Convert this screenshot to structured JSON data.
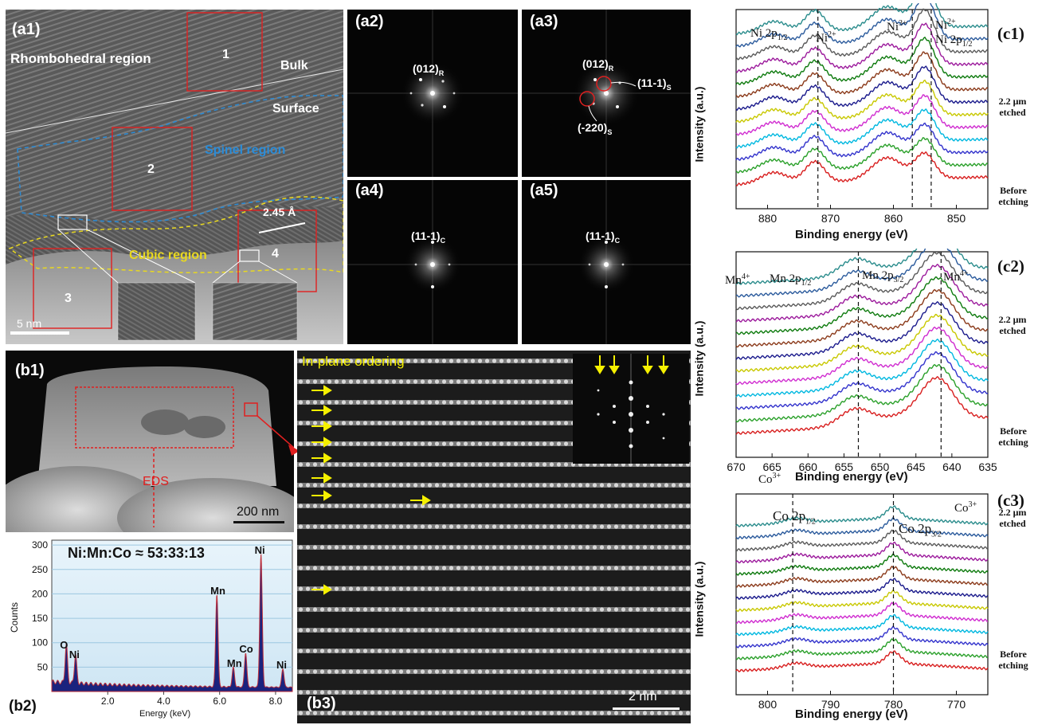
{
  "a1": {
    "label": "(a1)",
    "rhombohedral": "Rhombohedral region",
    "bulk": "Bulk",
    "surface": "Surface",
    "spinel": "Spinel region",
    "cubic": "Cubic region",
    "box1": "1",
    "box2": "2",
    "box3": "3",
    "box4": "4",
    "dspacing": "2.45 Å",
    "scalebar": "5 nm"
  },
  "a2": {
    "label": "(a2)",
    "spot": "(012)",
    "sub": "R"
  },
  "a3": {
    "label": "(a3)",
    "spot1": "(012)",
    "sub1": "R",
    "spot2": "(11-1)",
    "sub2": "S",
    "spot3": "(-220)",
    "sub3": "S"
  },
  "a4": {
    "label": "(a4)",
    "spot": "(11-1)",
    "sub": "C"
  },
  "a5": {
    "label": "(a5)",
    "spot": "(11-1)",
    "sub": "C"
  },
  "b1": {
    "label": "(b1)",
    "eds": "EDS",
    "scalebar": "200 nm"
  },
  "b2": {
    "label": "(b2)",
    "ratio": "Ni:Mn:Co ≈ 53:33:13",
    "ylabel": "Counts",
    "xlabel": "Energy (keV)",
    "yticks": [
      "300",
      "250",
      "200",
      "150",
      "100",
      "50"
    ],
    "xticks": [
      "2.0",
      "4.0",
      "6.0",
      "8.0"
    ],
    "peaks": [
      "O",
      "Ni",
      "Mn",
      "Mn",
      "Co",
      "Ni",
      "Ni"
    ]
  },
  "b3": {
    "label": "(b3)",
    "title": "In-plane ordering",
    "scalebar": "2 nm"
  },
  "c1": {
    "label": "(c1)",
    "ylabel": "Intensity (a.u.)",
    "xlabel": "Binding energy (eV)",
    "xticks": [
      "880",
      "870",
      "860",
      "850"
    ],
    "ann_ni2p12_left": "Ni 2p",
    "ann_ni2p12_left_sub": "1/2",
    "ann_ni2_a": "Ni",
    "ann_ni2_a_sup": "2+",
    "ann_ni3": "Ni",
    "ann_ni3_sup": "3+",
    "ann_ni2_b": "Ni",
    "ann_ni2_b_sup": "2+",
    "ann_ni2p12_right": "Ni 2p",
    "ann_ni2p12_right_sub": "1/2",
    "top_note": "2.2 μm etched",
    "bottom_note": "Before etching"
  },
  "c2": {
    "label": "(c2)",
    "ylabel": "Intensity (a.u.)",
    "xlabel": "Binding energy (eV)",
    "xticks": [
      "670",
      "665",
      "660",
      "655",
      "650",
      "645",
      "640",
      "635"
    ],
    "ann_mn4_left": "Mn",
    "ann_mn4_left_sup": "4+",
    "ann_mn2p12": "Mn 2p",
    "ann_mn2p12_sub": "1/2",
    "ann_mn2p32": "Mn 2p",
    "ann_mn2p32_sub": "3/2",
    "ann_mn4_right": "Mn",
    "ann_mn4_right_sup": "4+",
    "co3_below": "Co",
    "co3_below_sup": "3+",
    "top_note": "2.2 μm etched",
    "bottom_note": "Before etching"
  },
  "c3": {
    "label": "(c3)",
    "ylabel": "Intensity (a.u.)",
    "xlabel": "Binding energy (eV)",
    "xticks": [
      "800",
      "790",
      "780",
      "770"
    ],
    "ann_co2p12": "Co 2p",
    "ann_co2p12_sub": "1/2",
    "ann_co2p32": "Co 2p",
    "ann_co2p32_sub": "3/2",
    "ann_co3": "Co",
    "ann_co3_sup": "3+",
    "top_note": "2.2 μm etched",
    "bottom_note": "Before etching"
  },
  "colors": {
    "series": [
      "#d81e1e",
      "#2aa02a",
      "#3333cc",
      "#00b8e0",
      "#d02cd0",
      "#c8c800",
      "#1a1a8c",
      "#8b3a1a",
      "#0d7a0d",
      "#9c1a9c",
      "#5a5a5a",
      "#2a5a9c",
      "#2a8c8c"
    ],
    "a1_box": "#e02020",
    "spinel": "#2a8cd8",
    "cubic": "#e8d820",
    "arrow": "#f5f000",
    "eds_fill": "#1a237e",
    "eds_edge": "#c0303a"
  },
  "chart_data": [
    {
      "type": "bar",
      "title": "Ni:Mn:Co ≈ 53:33:13",
      "xlabel": "Energy (keV)",
      "ylabel": "Counts",
      "xlim": [
        0,
        8.6
      ],
      "ylim": [
        0,
        310
      ],
      "peaks": [
        {
          "element": "O",
          "x": 0.52,
          "y": 78
        },
        {
          "element": "Ni",
          "x": 0.85,
          "y": 58
        },
        {
          "element": "Mn",
          "x": 5.9,
          "y": 190
        },
        {
          "element": "Mn",
          "x": 6.49,
          "y": 40
        },
        {
          "element": "Co",
          "x": 6.93,
          "y": 70
        },
        {
          "element": "Ni",
          "x": 7.48,
          "y": 272
        },
        {
          "element": "Ni",
          "x": 8.26,
          "y": 38
        }
      ]
    },
    {
      "type": "line",
      "xlabel": "Binding energy (eV)",
      "ylabel": "Intensity (a.u.)",
      "xlim": [
        885,
        845
      ],
      "reference_lines": [
        872,
        857,
        854
      ],
      "series_count": 13
    },
    {
      "type": "line",
      "xlabel": "Binding energy (eV)",
      "ylabel": "Intensity (a.u.)",
      "xlim": [
        670,
        635
      ],
      "reference_lines": [
        653,
        641.5
      ],
      "series_count": 13
    },
    {
      "type": "line",
      "xlabel": "Binding energy (eV)",
      "ylabel": "Intensity (a.u.)",
      "xlim": [
        805,
        765
      ],
      "reference_lines": [
        796,
        780
      ],
      "series_count": 13
    }
  ]
}
